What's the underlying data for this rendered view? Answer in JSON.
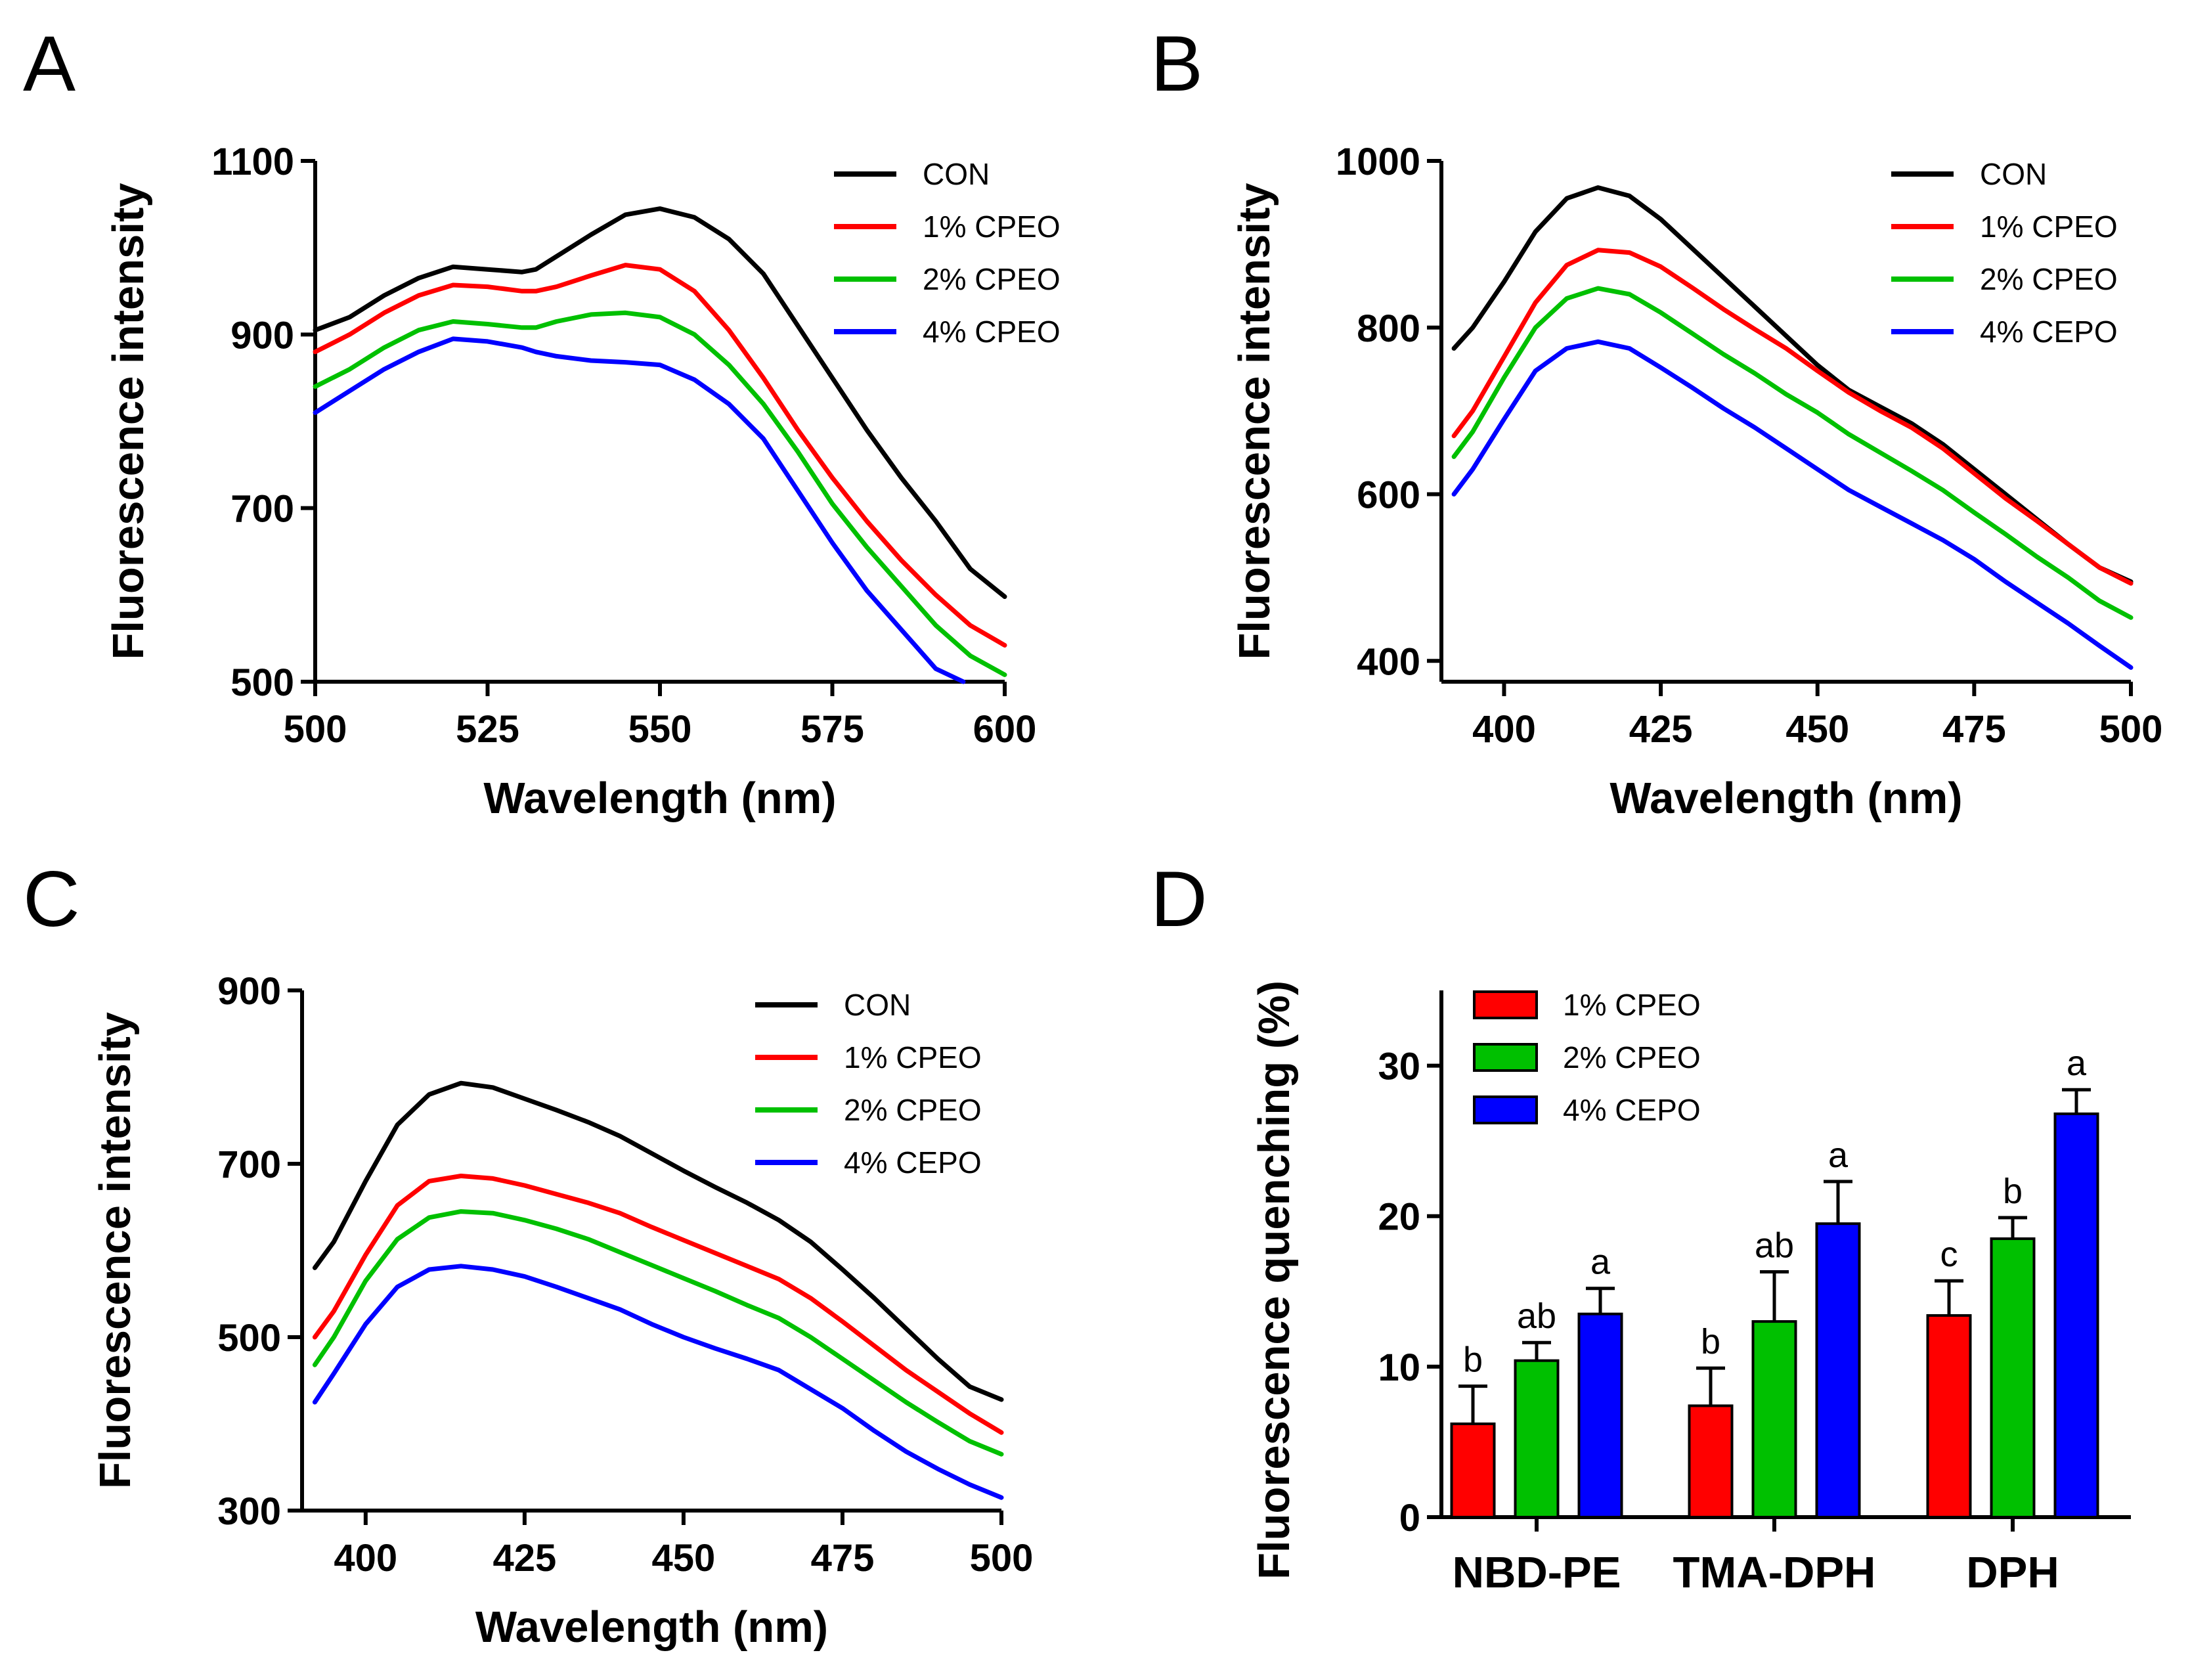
{
  "chart_data": [
    {
      "panel": "A",
      "type": "line",
      "xlabel": "Wavelength (nm)",
      "ylabel": "Fluorescence intensity",
      "xlim": [
        500,
        600
      ],
      "ylim": [
        500,
        1100
      ],
      "xticks": [
        "500",
        "525",
        "550",
        "575",
        "600"
      ],
      "yticks": [
        "500",
        "700",
        "900",
        "1100"
      ],
      "legend_position": "top-right",
      "series": [
        {
          "name": "CON",
          "color": "#000000",
          "x": [
            500,
            505,
            510,
            515,
            520,
            525,
            530,
            532,
            535,
            540,
            545,
            550,
            555,
            560,
            565,
            570,
            575,
            580,
            585,
            590,
            595,
            600
          ],
          "y": [
            905,
            920,
            945,
            965,
            978,
            975,
            972,
            975,
            990,
            1015,
            1038,
            1045,
            1035,
            1010,
            970,
            910,
            850,
            790,
            735,
            685,
            630,
            598
          ]
        },
        {
          "name": "1% CPEO",
          "color": "#ff0000",
          "x": [
            500,
            505,
            510,
            515,
            520,
            525,
            530,
            532,
            535,
            540,
            545,
            550,
            555,
            560,
            565,
            570,
            575,
            580,
            585,
            590,
            595,
            600
          ],
          "y": [
            880,
            900,
            925,
            945,
            957,
            955,
            950,
            950,
            955,
            968,
            980,
            975,
            950,
            905,
            850,
            790,
            735,
            685,
            640,
            600,
            565,
            542
          ]
        },
        {
          "name": "2% CPEO",
          "color": "#00c000",
          "x": [
            500,
            505,
            510,
            515,
            520,
            525,
            530,
            532,
            535,
            540,
            545,
            550,
            555,
            560,
            565,
            570,
            575,
            580,
            585,
            590,
            595,
            600
          ],
          "y": [
            840,
            860,
            885,
            905,
            915,
            912,
            908,
            908,
            915,
            923,
            925,
            920,
            900,
            865,
            820,
            765,
            705,
            655,
            610,
            565,
            530,
            508
          ]
        },
        {
          "name": "4% CPEO",
          "color": "#0000ff",
          "x": [
            500,
            505,
            510,
            515,
            520,
            525,
            530,
            532,
            535,
            540,
            545,
            550,
            555,
            560,
            565,
            570,
            575,
            580,
            585,
            590,
            594
          ],
          "y": [
            810,
            835,
            860,
            880,
            895,
            892,
            885,
            880,
            875,
            870,
            868,
            865,
            848,
            820,
            780,
            720,
            660,
            605,
            560,
            515,
            500
          ]
        }
      ]
    },
    {
      "panel": "B",
      "type": "line",
      "xlabel": "Wavelength (nm)",
      "ylabel": "Fluorescence intensity",
      "xlim": [
        390,
        500
      ],
      "ylim": [
        375,
        1000
      ],
      "xticks": [
        "400",
        "425",
        "450",
        "475",
        "500"
      ],
      "yticks": [
        "400",
        "600",
        "800",
        "1000"
      ],
      "legend_position": "top-right",
      "series": [
        {
          "name": "CON",
          "color": "#000000",
          "x": [
            392,
            395,
            400,
            405,
            410,
            415,
            420,
            425,
            430,
            435,
            440,
            445,
            450,
            455,
            460,
            465,
            470,
            475,
            480,
            485,
            490,
            495,
            500
          ],
          "y": [
            775,
            800,
            855,
            915,
            955,
            968,
            958,
            930,
            895,
            860,
            825,
            790,
            755,
            725,
            705,
            685,
            660,
            630,
            600,
            570,
            540,
            512,
            495
          ]
        },
        {
          "name": "1% CPEO",
          "color": "#ff0000",
          "x": [
            392,
            395,
            400,
            405,
            410,
            415,
            420,
            425,
            430,
            435,
            440,
            445,
            450,
            455,
            460,
            465,
            470,
            475,
            480,
            485,
            490,
            495,
            500
          ],
          "y": [
            670,
            700,
            765,
            830,
            875,
            893,
            890,
            873,
            848,
            822,
            798,
            775,
            748,
            722,
            700,
            680,
            655,
            625,
            595,
            568,
            540,
            512,
            493
          ]
        },
        {
          "name": "2% CPEO",
          "color": "#00c000",
          "x": [
            392,
            395,
            400,
            405,
            410,
            415,
            420,
            425,
            430,
            435,
            440,
            445,
            450,
            455,
            460,
            465,
            470,
            475,
            480,
            485,
            490,
            495,
            500
          ],
          "y": [
            645,
            675,
            740,
            800,
            835,
            847,
            840,
            818,
            793,
            768,
            745,
            720,
            698,
            672,
            650,
            628,
            605,
            578,
            552,
            525,
            500,
            472,
            452
          ]
        },
        {
          "name": "4% CEPO",
          "color": "#0000ff",
          "x": [
            392,
            395,
            400,
            405,
            410,
            415,
            420,
            425,
            430,
            435,
            440,
            445,
            450,
            455,
            460,
            465,
            470,
            475,
            480,
            485,
            490,
            495,
            500
          ],
          "y": [
            600,
            630,
            690,
            748,
            775,
            783,
            775,
            752,
            728,
            703,
            680,
            655,
            630,
            605,
            585,
            565,
            545,
            522,
            495,
            470,
            445,
            418,
            392
          ]
        }
      ]
    },
    {
      "panel": "C",
      "type": "line",
      "xlabel": "Wavelength (nm)",
      "ylabel": "Fluorescence intensity",
      "xlim": [
        390,
        500
      ],
      "ylim": [
        300,
        900
      ],
      "xticks": [
        "400",
        "425",
        "450",
        "475",
        "500"
      ],
      "yticks": [
        "300",
        "500",
        "700",
        "900"
      ],
      "legend_position": "top-right",
      "series": [
        {
          "name": "CON",
          "color": "#000000",
          "x": [
            392,
            395,
            400,
            405,
            410,
            415,
            420,
            425,
            430,
            435,
            440,
            445,
            450,
            455,
            460,
            465,
            470,
            475,
            480,
            485,
            490,
            495,
            500
          ],
          "y": [
            580,
            610,
            680,
            745,
            780,
            793,
            788,
            775,
            762,
            748,
            732,
            712,
            692,
            673,
            655,
            635,
            610,
            578,
            545,
            510,
            475,
            443,
            428
          ]
        },
        {
          "name": "1% CPEO",
          "color": "#ff0000",
          "x": [
            392,
            395,
            400,
            405,
            410,
            415,
            420,
            425,
            430,
            435,
            440,
            445,
            450,
            455,
            460,
            465,
            470,
            475,
            480,
            485,
            490,
            495,
            500
          ],
          "y": [
            500,
            530,
            595,
            652,
            680,
            686,
            683,
            675,
            665,
            655,
            643,
            627,
            612,
            597,
            582,
            567,
            545,
            518,
            490,
            462,
            437,
            412,
            390
          ]
        },
        {
          "name": "2% CPEO",
          "color": "#00c000",
          "x": [
            392,
            395,
            400,
            405,
            410,
            415,
            420,
            425,
            430,
            435,
            440,
            445,
            450,
            455,
            460,
            465,
            470,
            475,
            480,
            485,
            490,
            495,
            500
          ],
          "y": [
            468,
            500,
            565,
            613,
            638,
            645,
            643,
            635,
            625,
            613,
            598,
            583,
            568,
            553,
            537,
            522,
            500,
            475,
            450,
            425,
            402,
            380,
            365
          ]
        },
        {
          "name": "4% CEPO",
          "color": "#0000ff",
          "x": [
            392,
            395,
            400,
            405,
            410,
            415,
            420,
            425,
            430,
            435,
            440,
            445,
            450,
            455,
            460,
            465,
            470,
            475,
            480,
            485,
            490,
            495,
            500
          ],
          "y": [
            425,
            458,
            515,
            558,
            578,
            582,
            578,
            570,
            558,
            545,
            532,
            515,
            500,
            487,
            475,
            462,
            440,
            418,
            392,
            368,
            348,
            330,
            315
          ]
        }
      ]
    },
    {
      "panel": "D",
      "type": "bar",
      "xlabel": "",
      "ylabel": "Fluorescence quenching (%)",
      "ylim": [
        0,
        35
      ],
      "yticks": [
        "0",
        "10",
        "20",
        "30"
      ],
      "categories": [
        "NBD-PE",
        "TMA-DPH",
        "DPH"
      ],
      "legend_position": "top-left",
      "series": [
        {
          "name": "1% CPEO",
          "color": "#ff0000",
          "values": [
            6.2,
            7.4,
            13.4
          ],
          "errors": [
            2.5,
            2.5,
            2.3
          ],
          "labels": [
            "b",
            "b",
            "c"
          ]
        },
        {
          "name": "2% CPEO",
          "color": "#00c000",
          "values": [
            10.4,
            13.0,
            18.5
          ],
          "errors": [
            1.2,
            3.3,
            1.4
          ],
          "labels": [
            "ab",
            "ab",
            "b"
          ]
        },
        {
          "name": "4% CEPO",
          "color": "#0000ff",
          "values": [
            13.5,
            19.5,
            26.8
          ],
          "errors": [
            1.7,
            2.8,
            1.6
          ],
          "labels": [
            "a",
            "a",
            "a"
          ]
        }
      ]
    }
  ]
}
